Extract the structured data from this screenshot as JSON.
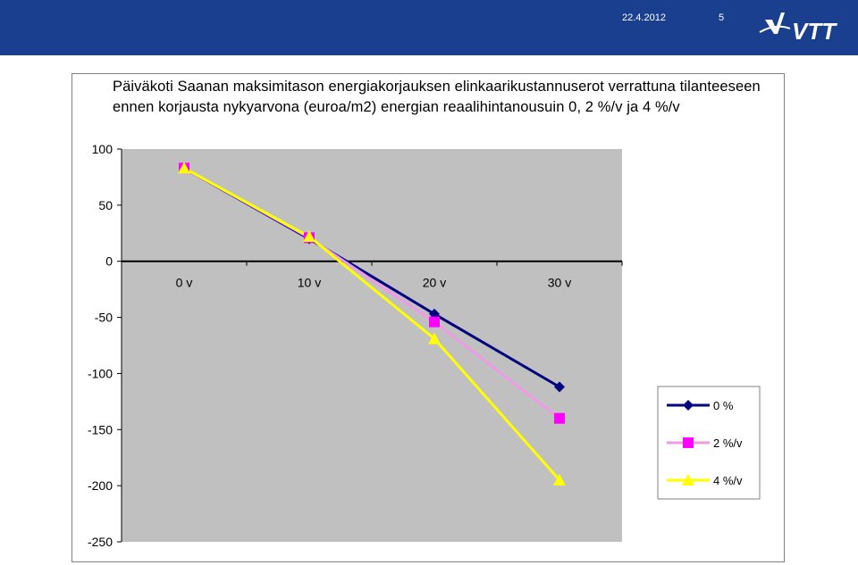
{
  "header": {
    "date": "22.4.2012",
    "page_number": "5",
    "logo_text": "VTT",
    "bar_color": "#1b3f8f"
  },
  "chart_data": {
    "type": "line",
    "title": "Päiväkoti Saanan maksimitason energiakorjauksen elinkaarikustannuserot  verrattuna tilanteeseen ennen korjausta nykyarvona (euroa/m2) energian reaalihintanousuin 0, 2 %/v ja 4 %/v",
    "categories": [
      "0 v",
      "10 v",
      "20 v",
      "30 v"
    ],
    "ylim": [
      -250,
      100
    ],
    "yticks": [
      100,
      50,
      0,
      -50,
      -100,
      -150,
      -200,
      -250
    ],
    "ytick_labels": [
      "100",
      "50",
      "0",
      "-50",
      "-100",
      "-150",
      "-200",
      "-250"
    ],
    "grid": false,
    "plot_background": "#c0c0c0",
    "legend_placement": "bottom-right",
    "series": [
      {
        "name": "0 %",
        "values": [
          83,
          20,
          -47,
          -112
        ],
        "color": "#000080",
        "marker": "diamond",
        "marker_color": "#000080"
      },
      {
        "name": "2 %/v",
        "values": [
          83,
          21,
          -54,
          -140
        ],
        "color": "#ee9be6",
        "marker": "square",
        "marker_color": "#ff00ff"
      },
      {
        "name": "4 %/v",
        "values": [
          83,
          22,
          -69,
          -195
        ],
        "color": "#ffff00",
        "marker": "triangle",
        "marker_color": "#ffff00"
      }
    ]
  }
}
